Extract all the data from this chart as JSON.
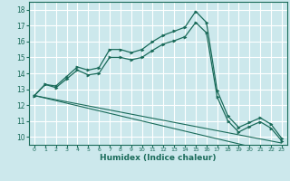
{
  "xlabel": "Humidex (Indice chaleur)",
  "bg_color": "#cce8ec",
  "grid_color": "#ffffff",
  "line_color": "#1a6b5a",
  "xlim": [
    -0.5,
    23.5
  ],
  "ylim": [
    9.5,
    18.5
  ],
  "xticks": [
    0,
    1,
    2,
    3,
    4,
    5,
    6,
    7,
    8,
    9,
    10,
    11,
    12,
    13,
    14,
    15,
    16,
    17,
    18,
    19,
    20,
    21,
    22,
    23
  ],
  "yticks": [
    10,
    11,
    12,
    13,
    14,
    15,
    16,
    17,
    18
  ],
  "curve1_x": [
    0,
    1,
    2,
    3,
    4,
    5,
    6,
    7,
    8,
    9,
    10,
    11,
    12,
    13,
    14,
    15,
    16,
    17,
    18,
    19,
    20,
    21,
    22,
    23
  ],
  "curve1_y": [
    12.6,
    13.3,
    13.2,
    13.8,
    14.4,
    14.2,
    14.35,
    15.5,
    15.5,
    15.3,
    15.5,
    16.0,
    16.4,
    16.65,
    16.9,
    17.9,
    17.2,
    12.9,
    11.3,
    10.6,
    10.9,
    11.2,
    10.8,
    9.9
  ],
  "curve2_x": [
    0,
    1,
    2,
    3,
    4,
    5,
    6,
    7,
    8,
    9,
    10,
    11,
    12,
    13,
    14,
    15,
    16,
    17,
    18,
    19,
    20,
    21,
    22,
    23
  ],
  "curve2_y": [
    12.6,
    13.3,
    13.1,
    13.65,
    14.2,
    13.9,
    14.0,
    15.0,
    15.0,
    14.85,
    15.0,
    15.45,
    15.85,
    16.05,
    16.3,
    17.2,
    16.55,
    12.5,
    11.0,
    10.3,
    10.65,
    10.95,
    10.55,
    9.75
  ],
  "curve3_x": [
    0,
    1,
    2,
    3,
    4,
    5,
    6,
    7,
    8,
    9,
    10,
    11,
    12,
    13,
    14,
    15,
    16,
    17,
    18,
    19,
    20,
    21,
    22,
    23
  ],
  "curve3_y": [
    12.6,
    12.47,
    12.34,
    12.21,
    12.08,
    11.95,
    11.82,
    11.69,
    11.56,
    11.43,
    11.3,
    11.17,
    11.04,
    10.91,
    10.78,
    10.65,
    10.52,
    10.39,
    10.26,
    10.13,
    10.0,
    9.87,
    9.74,
    9.61
  ],
  "curve4_x": [
    0,
    1,
    2,
    3,
    4,
    5,
    6,
    7,
    8,
    9,
    10,
    11,
    12,
    13,
    14,
    15,
    16,
    17,
    18,
    19,
    20,
    21,
    22,
    23
  ],
  "curve4_y": [
    12.6,
    12.44,
    12.28,
    12.12,
    11.96,
    11.8,
    11.64,
    11.48,
    11.32,
    11.16,
    11.0,
    10.84,
    10.68,
    10.52,
    10.36,
    10.2,
    10.04,
    9.88,
    9.72,
    9.56,
    9.4,
    9.24,
    9.08,
    8.92
  ]
}
